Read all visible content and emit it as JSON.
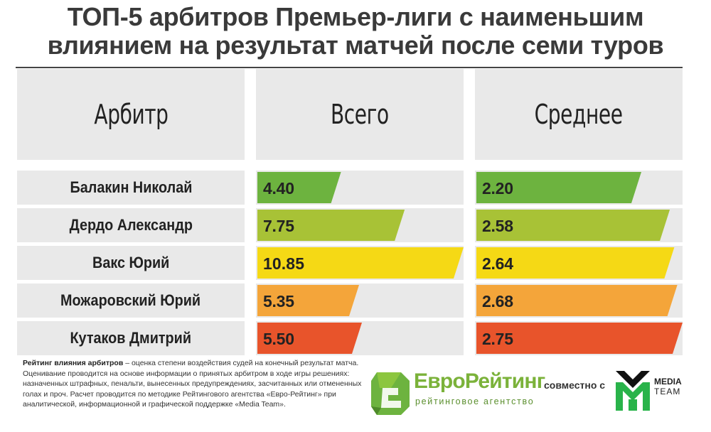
{
  "title_line1": "ТОП-5 арбитров Премьер-лиги с наименьшим",
  "title_line2": "влиянием на результат матчей после семи туров",
  "chart_data": {
    "type": "table",
    "columns": [
      "Арбитр",
      "Всего",
      "Среднее"
    ],
    "rows": [
      {
        "name": "Балакин Николай",
        "total": "4.40",
        "average": "2.20",
        "total_value": 4.4,
        "average_value": 2.2,
        "color": "#6db33f"
      },
      {
        "name": "Дердо Александр",
        "total": "7.75",
        "average": "2.58",
        "total_value": 7.75,
        "average_value": 2.58,
        "color": "#a8c236"
      },
      {
        "name": "Вакс Юрий",
        "total": "10.85",
        "average": "2.64",
        "total_value": 10.85,
        "average_value": 2.64,
        "color": "#f5d915"
      },
      {
        "name": "Можаровский Юрий",
        "total": "5.35",
        "average": "2.68",
        "total_value": 5.35,
        "average_value": 2.68,
        "color": "#f4a53a"
      },
      {
        "name": "Кутаков Дмитрий",
        "total": "5.50",
        "average": "2.75",
        "total_value": 5.5,
        "average_value": 2.75,
        "color": "#e8542b"
      }
    ],
    "total_max": 10.85,
    "average_max": 2.75
  },
  "footnote": {
    "bold_term": "Рейтинг влияния арбитров",
    "line1_rest": " – оценка степени воздействия судей на конечный результат матча.",
    "line2": "Оценивание проводится на основе информации о принятых арбитром в ходе игры решениях:",
    "line3": "назначенных штрафных, пенальти, вынесенных предупреждениях, засчитанных или отмененных",
    "line4": "голах и проч. Расчет проводится по методике Рейтингового агентства «Евро-Рейтинг» при",
    "line5": "аналитической, информационной и графической поддержке «Media Team»."
  },
  "logos": {
    "eurorating_name": "ЕвроРейтинг",
    "eurorating_sub": "рейтинговое агентство",
    "together": "совместно с",
    "mediateam_line1": "MEDIA",
    "mediateam_line2": "TEAM"
  }
}
